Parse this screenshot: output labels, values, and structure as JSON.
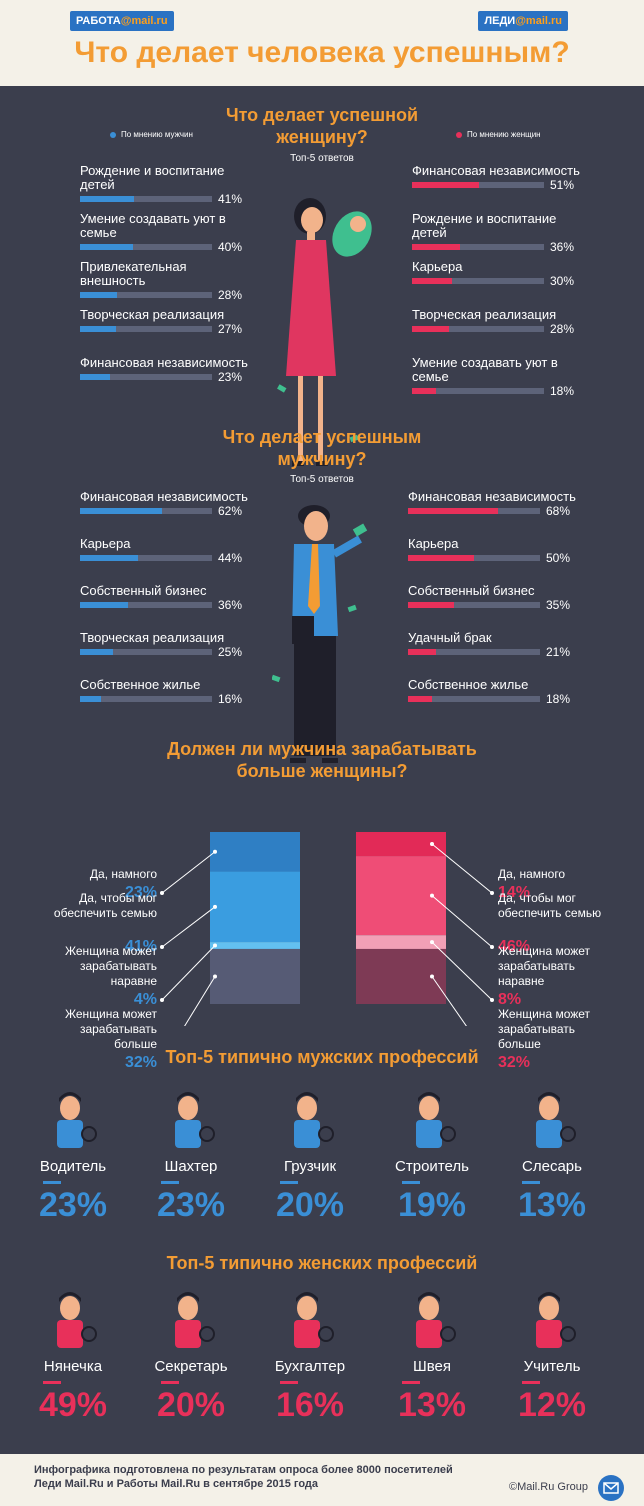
{
  "header": {
    "logo_left_prefix": "РАБОТА",
    "logo_left_brand": "@mail.ru",
    "logo_right_prefix": "ЛЕДИ",
    "logo_right_brand": "@mail.ru",
    "title": "Что делает человека успешным?"
  },
  "women_section": {
    "title": "Что делает успешной женщину?",
    "subtitle": "Топ-5 ответов",
    "legend_men": "По мнению мужчин",
    "legend_women": "По мнению женщин",
    "men_items": [
      {
        "label": "Рождение и воспитание детей",
        "pct": "41%",
        "value": 41
      },
      {
        "label": "Умение создавать уют в семье",
        "pct": "40%",
        "value": 40
      },
      {
        "label": "Привлекательная внешность",
        "pct": "28%",
        "value": 28
      },
      {
        "label": "Творческая реализация",
        "pct": "27%",
        "value": 27
      },
      {
        "label": "Финансовая независимость",
        "pct": "23%",
        "value": 23
      }
    ],
    "women_items": [
      {
        "label": "Финансовая независимость",
        "pct": "51%",
        "value": 51
      },
      {
        "label": "Рождение и воспитание детей",
        "pct": "36%",
        "value": 36
      },
      {
        "label": "Карьера",
        "pct": "30%",
        "value": 30
      },
      {
        "label": "Творческая реализация",
        "pct": "28%",
        "value": 28
      },
      {
        "label": "Умение создавать уют в семье",
        "pct": "18%",
        "value": 18
      }
    ]
  },
  "men_section": {
    "title": "Что делает успешным мужчину?",
    "subtitle": "Топ-5 ответов",
    "men_items": [
      {
        "label": "Финансовая независимость",
        "pct": "62%",
        "value": 62
      },
      {
        "label": "Карьера",
        "pct": "44%",
        "value": 44
      },
      {
        "label": "Собственный бизнес",
        "pct": "36%",
        "value": 36
      },
      {
        "label": "Творческая реализация",
        "pct": "25%",
        "value": 25
      },
      {
        "label": "Собственное жилье",
        "pct": "16%",
        "value": 16
      }
    ],
    "women_items": [
      {
        "label": "Финансовая независимость",
        "pct": "68%",
        "value": 68
      },
      {
        "label": "Карьера",
        "pct": "50%",
        "value": 50
      },
      {
        "label": "Собственный бизнес",
        "pct": "35%",
        "value": 35
      },
      {
        "label": "Удачный брак",
        "pct": "21%",
        "value": 21
      },
      {
        "label": "Собственное жилье",
        "pct": "18%",
        "value": 18
      }
    ]
  },
  "earn_section": {
    "title": "Должен ли мужчина зарабатывать больше женщины?",
    "men": [
      {
        "label": "Да, намного",
        "pct": "23%",
        "value": 23
      },
      {
        "label": "Да, чтобы мог обеспечить семью",
        "pct": "41%",
        "value": 41
      },
      {
        "label": "Женщина может зарабатывать наравне",
        "pct": "4%",
        "value": 4
      },
      {
        "label": "Женщина может зарабатывать больше",
        "pct": "32%",
        "value": 32
      }
    ],
    "women": [
      {
        "label": "Да, намного",
        "pct": "14%",
        "value": 14
      },
      {
        "label": "Да, чтобы мог обеспечить семью",
        "pct": "46%",
        "value": 46
      },
      {
        "label": "Женщина может зарабатывать наравне",
        "pct": "8%",
        "value": 8
      },
      {
        "label": "Женщина может зарабатывать больше",
        "pct": "32%",
        "value": 32
      }
    ]
  },
  "male_professions": {
    "title": "Топ-5 типично мужских профессий",
    "items": [
      {
        "name": "Водитель",
        "pct": "23%",
        "icon": "driver-icon"
      },
      {
        "name": "Шахтер",
        "pct": "23%",
        "icon": "miner-icon"
      },
      {
        "name": "Грузчик",
        "pct": "20%",
        "icon": "loader-icon"
      },
      {
        "name": "Строитель",
        "pct": "19%",
        "icon": "builder-icon"
      },
      {
        "name": "Слесарь",
        "pct": "13%",
        "icon": "mechanic-icon"
      }
    ]
  },
  "female_professions": {
    "title": "Топ-5 типично женских профессий",
    "items": [
      {
        "name": "Нянечка",
        "pct": "49%",
        "icon": "nanny-icon"
      },
      {
        "name": "Секретарь",
        "pct": "20%",
        "icon": "secretary-icon"
      },
      {
        "name": "Бухгалтер",
        "pct": "16%",
        "icon": "accountant-icon"
      },
      {
        "name": "Швея",
        "pct": "13%",
        "icon": "seamstress-icon"
      },
      {
        "name": "Учитель",
        "pct": "12%",
        "icon": "teacher-icon"
      }
    ]
  },
  "footer": {
    "line1": "Инфографика подготовлена по результатам опроса более 8000 посетителей",
    "line2": "Леди Mail.Ru и Работы Mail.Ru в сентябре 2015 года",
    "copyright": "©Mail.Ru Group"
  },
  "colors": {
    "orange": "#f39c34",
    "blue": "#3a8fd6",
    "red": "#e8305a",
    "dark_bg": "#3b3e4d",
    "light_bg": "#f4f1e8"
  }
}
